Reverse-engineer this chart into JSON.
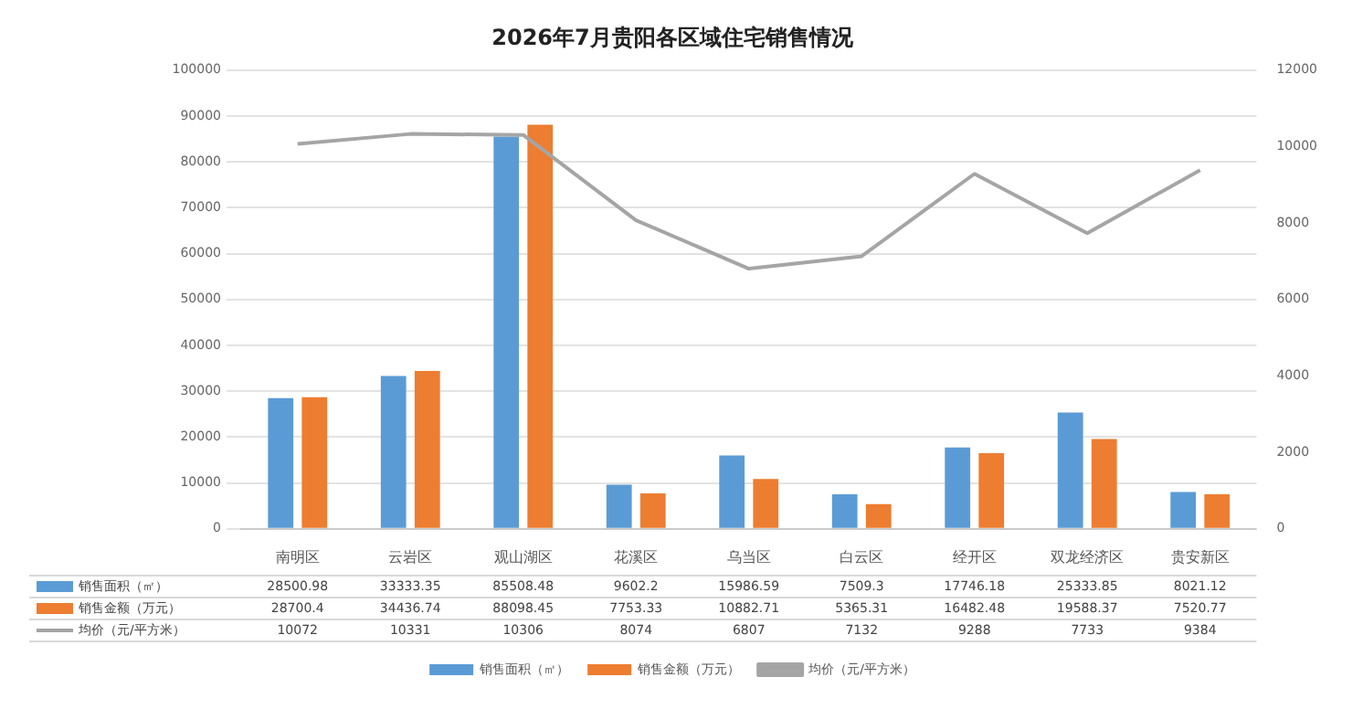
{
  "chart_data": {
    "type": "bar",
    "title": "2026年7月贵阳各区域住宅销售情况",
    "categories": [
      "南明区",
      "云岩区",
      "观山湖区",
      "花溪区",
      "乌当区",
      "白云区",
      "经开区",
      "双龙经济区",
      "贵安新区"
    ],
    "series": [
      {
        "name": "销售面积（㎡）",
        "color": "#5b9bd5",
        "values": [
          28500.98,
          33333.35,
          85508.48,
          9602.2,
          15986.59,
          7509.3,
          17746.18,
          25333.85,
          8021.12
        ]
      },
      {
        "name": "销售金额（万元）",
        "color": "#ed7d31",
        "values": [
          28700.4,
          34436.74,
          88098.45,
          7753.33,
          10882.71,
          5365.31,
          16482.48,
          19588.37,
          7520.77
        ]
      },
      {
        "name": "均价（元/平方米）",
        "type": "line",
        "axis": "y2",
        "color": "#a5a5a5",
        "values": [
          10072,
          10331,
          10306,
          8074,
          6807,
          7132,
          9288,
          7733,
          9384
        ]
      }
    ],
    "ylim": [
      0,
      100000
    ],
    "yticks": [
      0,
      10000,
      20000,
      30000,
      40000,
      50000,
      60000,
      70000,
      80000,
      90000,
      100000
    ],
    "y2lim": [
      0,
      12000
    ],
    "y2ticks": [
      0,
      2000,
      4000,
      6000,
      8000,
      10000,
      12000
    ],
    "grid": "y",
    "legend": "bottom",
    "data_labels": true,
    "marker": "none"
  }
}
